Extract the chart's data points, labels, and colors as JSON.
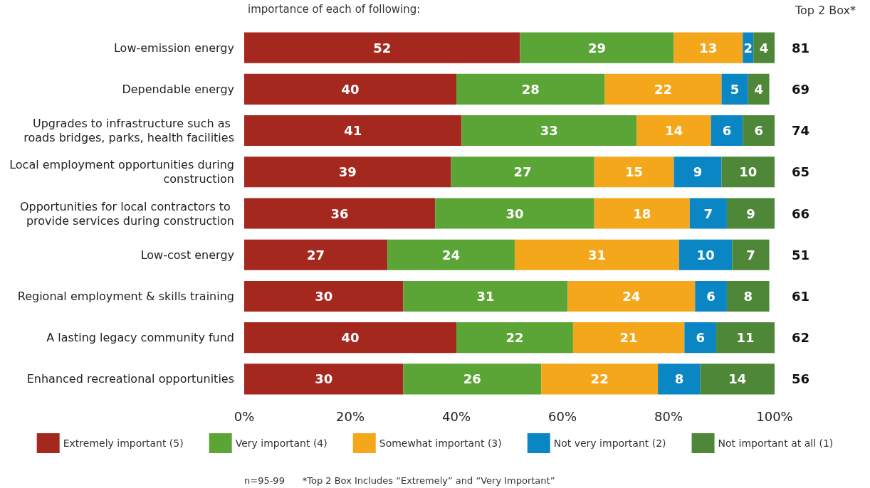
{
  "chart_data": {
    "type": "bar",
    "orientation": "horizontal",
    "stacked": true,
    "title": "importance of each of following:",
    "categories": [
      "Low-emission energy",
      "Dependable energy",
      "Upgrades to infrastructure such as roads bridges, parks, health facilities",
      "Local employment opportunities during construction",
      "Opportunities for local contractors to provide services during construction",
      "Low-cost energy",
      "Regional employment & skills training",
      "A lasting legacy community fund",
      "Enhanced recreational opportunities"
    ],
    "series": [
      {
        "name": "Extremely important (5)",
        "color": "#a5281e",
        "values": [
          52,
          40,
          41,
          39,
          36,
          27,
          30,
          40,
          30
        ]
      },
      {
        "name": "Very important (4)",
        "color": "#5aa536",
        "values": [
          29,
          28,
          33,
          27,
          30,
          24,
          31,
          22,
          26
        ]
      },
      {
        "name": "Somewhat important (3)",
        "color": "#f5a71b",
        "values": [
          13,
          22,
          14,
          15,
          18,
          31,
          24,
          21,
          22
        ]
      },
      {
        "name": "Not very important (2)",
        "color": "#0b86c4",
        "values": [
          2,
          5,
          6,
          9,
          7,
          10,
          6,
          6,
          8
        ]
      },
      {
        "name": "Not important at all (1)",
        "color": "#4e8737",
        "values": [
          4,
          4,
          6,
          10,
          9,
          7,
          8,
          11,
          14
        ]
      }
    ],
    "xlim": [
      0,
      100
    ],
    "xticks": [
      {
        "value": 0,
        "label": "0%"
      },
      {
        "value": 20,
        "label": "20%"
      },
      {
        "value": 40,
        "label": "40%"
      },
      {
        "value": 60,
        "label": "60%"
      },
      {
        "value": 80,
        "label": "80%"
      },
      {
        "value": 100,
        "label": "100%"
      }
    ],
    "data_labels": true,
    "grid": false,
    "legend": "bottom",
    "annotations": [
      "Top 2 Box*",
      "81",
      "69",
      "74",
      "65",
      "66",
      "51",
      "61",
      "62",
      "56",
      "n=95-99",
      "*Top 2 Box Includes “Extremely” and “Very Important”"
    ]
  }
}
